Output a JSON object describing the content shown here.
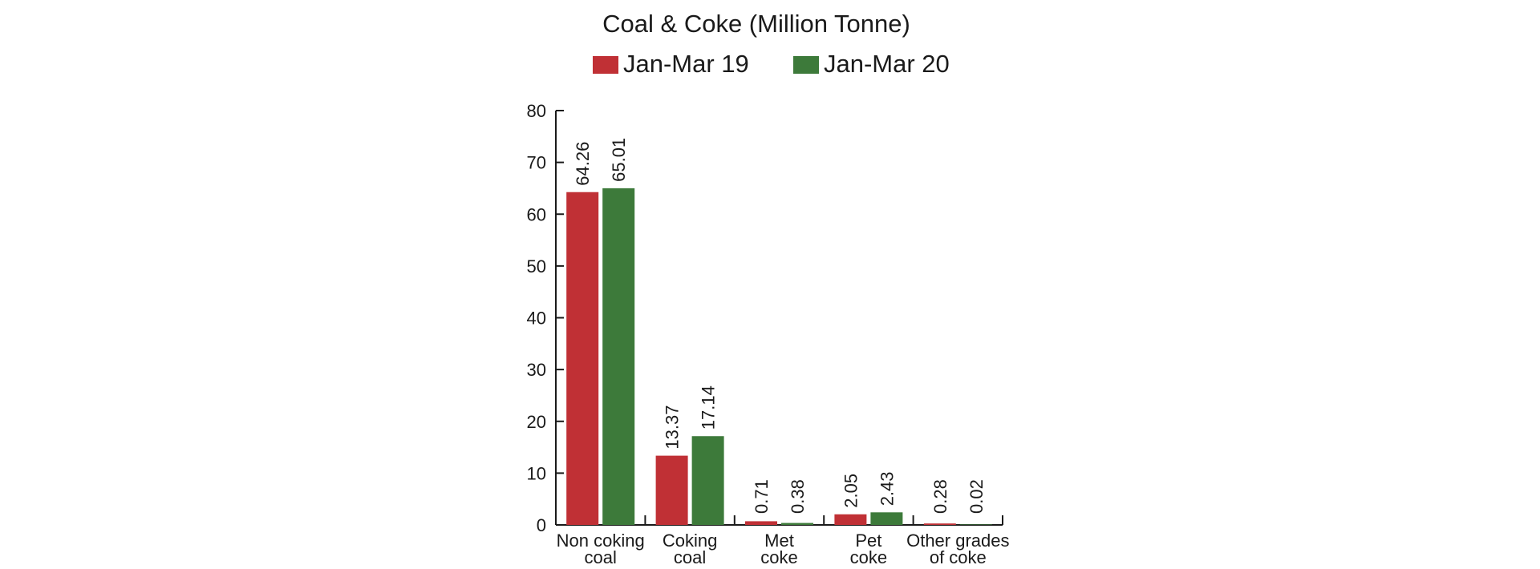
{
  "chart_data": {
    "type": "bar",
    "title": "Coal & Coke (Million Tonne)",
    "categories": [
      [
        "Non coking",
        "coal"
      ],
      [
        "Coking",
        "coal"
      ],
      [
        "Met",
        "coke"
      ],
      [
        "Pet",
        "coke"
      ],
      [
        "Other grades",
        "of coke"
      ]
    ],
    "series": [
      {
        "name": "Jan-Mar 19",
        "color": "#c03035",
        "values": [
          64.26,
          13.37,
          0.71,
          2.05,
          0.28
        ],
        "labels": [
          "64.26",
          "13.37",
          "0.71",
          "2.05",
          "0.28"
        ]
      },
      {
        "name": "Jan-Mar 20",
        "color": "#3d7a3a",
        "values": [
          65.01,
          17.14,
          0.38,
          2.43,
          0.02
        ],
        "labels": [
          "65.01",
          "17.14",
          "0.38",
          "2.43",
          "0.02"
        ]
      }
    ],
    "ylim": [
      0,
      80
    ],
    "yticks": [
      "0",
      "10",
      "20",
      "30",
      "40",
      "50",
      "60",
      "70",
      "80"
    ],
    "xlabel": "",
    "ylabel": "",
    "legend_position": "top-center",
    "grid": false
  }
}
